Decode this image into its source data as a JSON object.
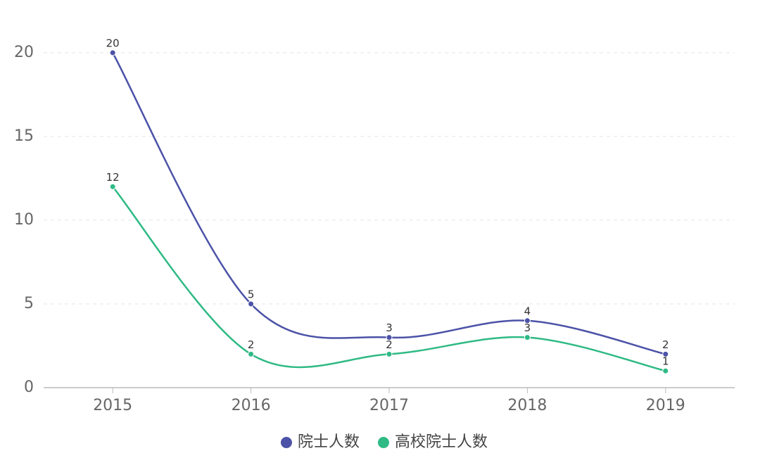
{
  "chart_data": {
    "type": "line",
    "categories": [
      "2015",
      "2016",
      "2017",
      "2018",
      "2019"
    ],
    "series": [
      {
        "name": "院士人数",
        "color": "#4b52a7",
        "values": [
          20,
          5,
          3,
          4,
          2
        ]
      },
      {
        "name": "高校院士人数",
        "color": "#2fba85",
        "values": [
          12,
          2,
          2,
          3,
          1
        ]
      }
    ],
    "ylim": [
      0,
      20
    ],
    "yticks": [
      0,
      5,
      10,
      15,
      20
    ],
    "grid": true,
    "smooth": true,
    "legend": "bottom"
  }
}
